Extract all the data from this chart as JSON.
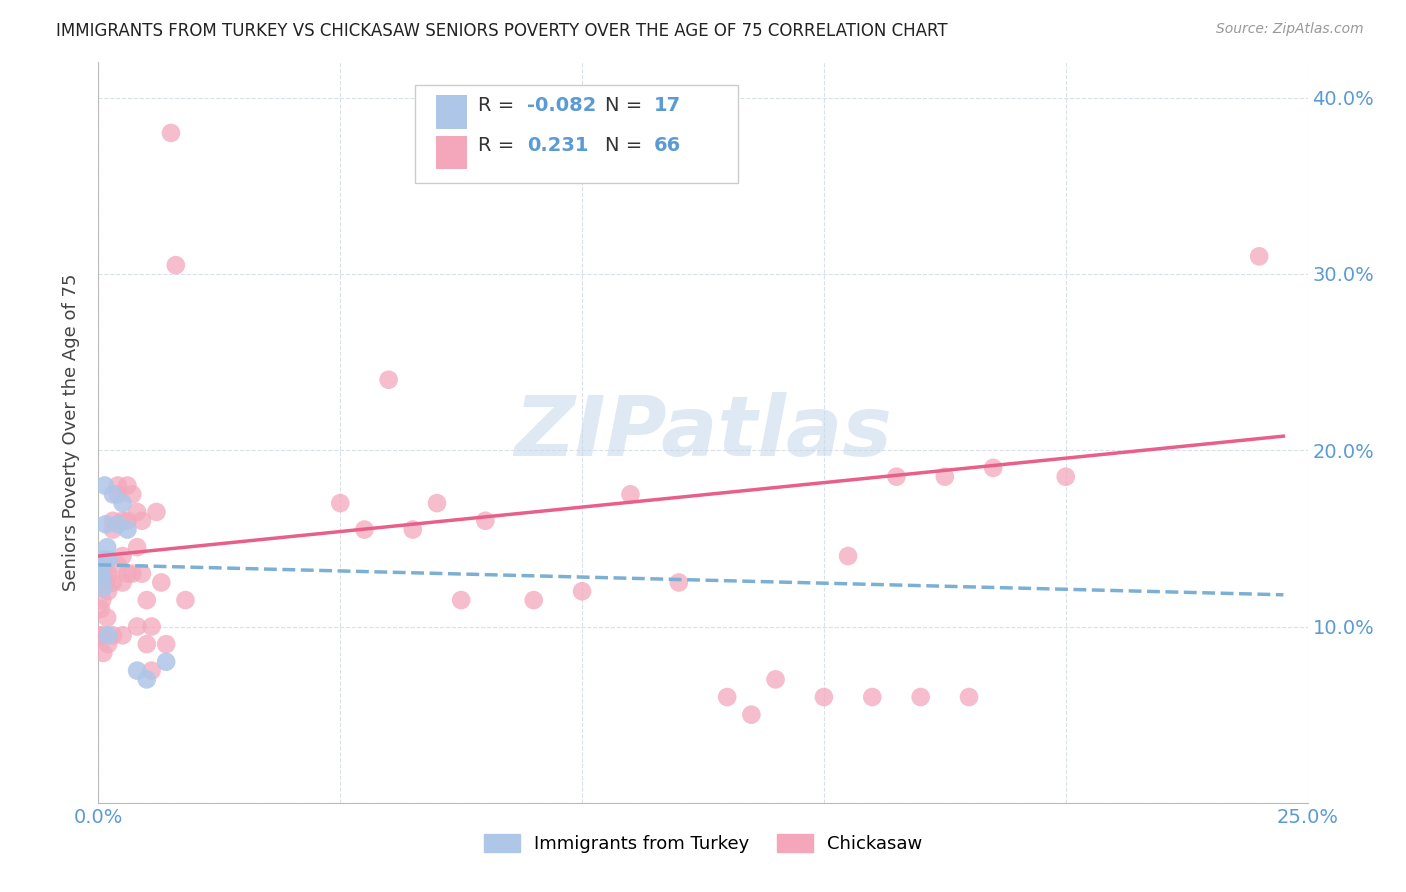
{
  "title": "IMMIGRANTS FROM TURKEY VS CHICKASAW SENIORS POVERTY OVER THE AGE OF 75 CORRELATION CHART",
  "source": "Source: ZipAtlas.com",
  "ylabel": "Seniors Poverty Over the Age of 75",
  "xlim": [
    0.0,
    0.25
  ],
  "ylim": [
    0.0,
    0.42
  ],
  "xticks": [
    0.0,
    0.05,
    0.1,
    0.15,
    0.2,
    0.25
  ],
  "xtick_labels": [
    "0.0%",
    "",
    "",
    "",
    "",
    "25.0%"
  ],
  "yticks": [
    0.0,
    0.1,
    0.2,
    0.3,
    0.4
  ],
  "ytick_labels": [
    "",
    "10.0%",
    "20.0%",
    "30.0%",
    "40.0%"
  ],
  "turkey_R": -0.082,
  "turkey_N": 17,
  "chickasaw_R": 0.231,
  "chickasaw_N": 66,
  "turkey_color": "#aec6e8",
  "chickasaw_color": "#f4a7bb",
  "turkey_line_color": "#7bafd4",
  "chickasaw_line_color": "#e8608a",
  "tick_color": "#5b9bd5",
  "background_color": "#ffffff",
  "turkey_x": [
    0.0003,
    0.0005,
    0.0007,
    0.001,
    0.001,
    0.0013,
    0.0015,
    0.0018,
    0.002,
    0.002,
    0.003,
    0.004,
    0.005,
    0.006,
    0.008,
    0.01,
    0.014
  ],
  "turkey_y": [
    0.13,
    0.135,
    0.128,
    0.138,
    0.122,
    0.18,
    0.158,
    0.145,
    0.095,
    0.138,
    0.175,
    0.158,
    0.17,
    0.155,
    0.075,
    0.07,
    0.08
  ],
  "chickasaw_x": [
    0.0003,
    0.0005,
    0.0008,
    0.001,
    0.001,
    0.001,
    0.0015,
    0.0018,
    0.002,
    0.002,
    0.002,
    0.003,
    0.003,
    0.003,
    0.003,
    0.004,
    0.004,
    0.004,
    0.005,
    0.005,
    0.005,
    0.005,
    0.006,
    0.006,
    0.006,
    0.007,
    0.007,
    0.008,
    0.008,
    0.008,
    0.009,
    0.009,
    0.01,
    0.01,
    0.011,
    0.011,
    0.012,
    0.013,
    0.014,
    0.015,
    0.016,
    0.018,
    0.05,
    0.055,
    0.06,
    0.065,
    0.07,
    0.075,
    0.08,
    0.09,
    0.1,
    0.11,
    0.12,
    0.13,
    0.135,
    0.14,
    0.15,
    0.155,
    0.16,
    0.165,
    0.17,
    0.175,
    0.18,
    0.185,
    0.2,
    0.24
  ],
  "chickasaw_y": [
    0.095,
    0.11,
    0.115,
    0.13,
    0.095,
    0.085,
    0.125,
    0.105,
    0.13,
    0.12,
    0.09,
    0.16,
    0.155,
    0.125,
    0.095,
    0.18,
    0.175,
    0.135,
    0.16,
    0.14,
    0.125,
    0.095,
    0.18,
    0.16,
    0.13,
    0.175,
    0.13,
    0.165,
    0.145,
    0.1,
    0.16,
    0.13,
    0.115,
    0.09,
    0.1,
    0.075,
    0.165,
    0.125,
    0.09,
    0.38,
    0.305,
    0.115,
    0.17,
    0.155,
    0.24,
    0.155,
    0.17,
    0.115,
    0.16,
    0.115,
    0.12,
    0.175,
    0.125,
    0.06,
    0.05,
    0.07,
    0.06,
    0.14,
    0.06,
    0.185,
    0.06,
    0.185,
    0.06,
    0.19,
    0.185,
    0.31
  ],
  "turkey_line_x0": 0.0,
  "turkey_line_x1": 0.245,
  "turkey_line_y0": 0.135,
  "turkey_line_y1": 0.118,
  "chickasaw_line_x0": 0.0,
  "chickasaw_line_x1": 0.245,
  "chickasaw_line_y0": 0.14,
  "chickasaw_line_y1": 0.208
}
